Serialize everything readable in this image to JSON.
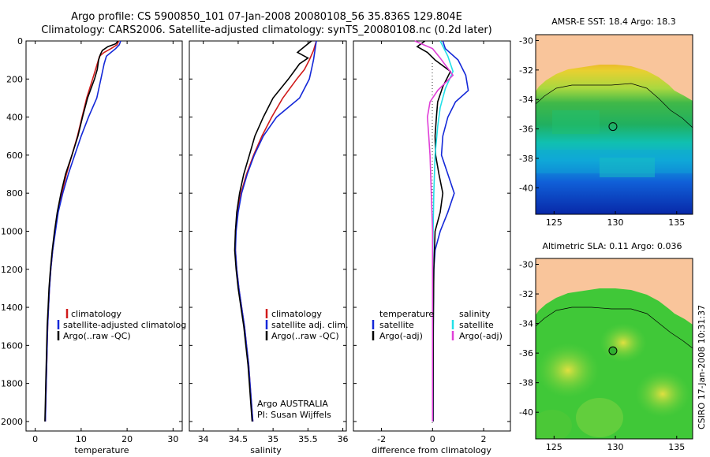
{
  "header": {
    "line1": "Argo profile: CS 5900850_101 07-Jan-2008 20080108_56 35.836S 129.804E",
    "line2": "Climatology: CARS2006. Satellite-adjusted climatology: synTS_20080108.nc (0.2d later)"
  },
  "footer_stamp": "CSIRO 17-Jan-2008 10:31:37",
  "colors": {
    "climatology": "#d01a1a",
    "satellite": "#1428d8",
    "argo": "#000000",
    "cyan": "#22e0e8",
    "magenta": "#e040d8",
    "land": "#f9c59b"
  },
  "chart_data": [
    {
      "type": "line",
      "id": "temperature",
      "xlabel": "temperature",
      "ylabel": "",
      "xlim": [
        -2,
        32
      ],
      "ylim": [
        2050,
        0
      ],
      "xticks": [
        0,
        10,
        20,
        30
      ],
      "yticks": [
        0,
        200,
        400,
        600,
        800,
        1000,
        1200,
        1400,
        1600,
        1800,
        2000
      ],
      "legend": [
        "climatology",
        "satellite-adjusted climatolog",
        "Argo(..raw -QC)"
      ],
      "series": [
        {
          "name": "climatology",
          "color": "#d01a1a",
          "points": [
            [
              18.2,
              0
            ],
            [
              17.8,
              20
            ],
            [
              16.5,
              40
            ],
            [
              15.0,
              60
            ],
            [
              14.0,
              80
            ],
            [
              13.5,
              120
            ],
            [
              12.5,
              200
            ],
            [
              11.2,
              300
            ],
            [
              10.2,
              400
            ],
            [
              9.2,
              500
            ],
            [
              8.0,
              600
            ],
            [
              6.8,
              700
            ],
            [
              5.8,
              800
            ],
            [
              4.9,
              900
            ],
            [
              4.3,
              1000
            ],
            [
              3.8,
              1100
            ],
            [
              3.4,
              1200
            ],
            [
              3.1,
              1300
            ],
            [
              2.9,
              1400
            ],
            [
              2.7,
              1500
            ],
            [
              2.6,
              1600
            ],
            [
              2.5,
              1700
            ],
            [
              2.4,
              1800
            ],
            [
              2.3,
              1900
            ],
            [
              2.2,
              2000
            ]
          ]
        },
        {
          "name": "satellite-adjusted climatology",
          "color": "#1428d8",
          "points": [
            [
              18.6,
              0
            ],
            [
              18.3,
              20
            ],
            [
              17.5,
              40
            ],
            [
              16.5,
              60
            ],
            [
              15.5,
              80
            ],
            [
              15.0,
              120
            ],
            [
              14.3,
              200
            ],
            [
              13.4,
              300
            ],
            [
              11.6,
              400
            ],
            [
              10.0,
              500
            ],
            [
              8.6,
              600
            ],
            [
              7.2,
              700
            ],
            [
              6.0,
              800
            ],
            [
              5.0,
              900
            ],
            [
              4.4,
              1000
            ],
            [
              3.8,
              1100
            ],
            [
              3.4,
              1200
            ],
            [
              3.1,
              1300
            ],
            [
              2.9,
              1400
            ],
            [
              2.7,
              1500
            ],
            [
              2.6,
              1600
            ],
            [
              2.5,
              1700
            ],
            [
              2.4,
              1800
            ],
            [
              2.3,
              1900
            ],
            [
              2.2,
              2000
            ]
          ]
        },
        {
          "name": "Argo(..raw -QC)",
          "color": "#000000",
          "points": [
            [
              18.0,
              0
            ],
            [
              17.5,
              15
            ],
            [
              15.8,
              30
            ],
            [
              14.6,
              50
            ],
            [
              14.2,
              70
            ],
            [
              13.8,
              100
            ],
            [
              13.5,
              150
            ],
            [
              12.9,
              200
            ],
            [
              11.4,
              300
            ],
            [
              10.3,
              400
            ],
            [
              9.3,
              500
            ],
            [
              8.0,
              600
            ],
            [
              6.6,
              700
            ],
            [
              5.6,
              800
            ],
            [
              4.8,
              900
            ],
            [
              4.2,
              1000
            ],
            [
              3.7,
              1100
            ],
            [
              3.3,
              1200
            ],
            [
              3.0,
              1300
            ],
            [
              2.8,
              1400
            ],
            [
              2.6,
              1500
            ],
            [
              2.5,
              1600
            ],
            [
              2.4,
              1700
            ],
            [
              2.3,
              1800
            ],
            [
              2.2,
              1900
            ],
            [
              2.1,
              2000
            ]
          ]
        }
      ]
    },
    {
      "type": "line",
      "id": "salinity",
      "xlabel": "salinity",
      "ylabel": "",
      "xlim": [
        33.8,
        36.05
      ],
      "ylim": [
        2050,
        0
      ],
      "xticks": [
        34,
        34.5,
        35,
        35.5,
        36
      ],
      "legend": [
        "climatology",
        "satellite adj. clim.",
        "Argo(..raw -QC)"
      ],
      "annotation": [
        "Argo AUSTRALIA",
        "PI: Susan Wijffels"
      ],
      "series": [
        {
          "name": "climatology",
          "color": "#d01a1a",
          "points": [
            [
              35.62,
              0
            ],
            [
              35.58,
              50
            ],
            [
              35.52,
              100
            ],
            [
              35.45,
              150
            ],
            [
              35.34,
              200
            ],
            [
              35.14,
              300
            ],
            [
              34.98,
              400
            ],
            [
              34.84,
              500
            ],
            [
              34.72,
              600
            ],
            [
              34.62,
              700
            ],
            [
              34.54,
              800
            ],
            [
              34.49,
              900
            ],
            [
              34.46,
              1000
            ],
            [
              34.46,
              1100
            ],
            [
              34.48,
              1200
            ],
            [
              34.51,
              1300
            ],
            [
              34.55,
              1400
            ],
            [
              34.59,
              1500
            ],
            [
              34.62,
              1600
            ],
            [
              34.65,
              1700
            ],
            [
              34.67,
              1800
            ],
            [
              34.69,
              1900
            ],
            [
              34.71,
              2000
            ]
          ]
        },
        {
          "name": "satellite adj. clim.",
          "color": "#1428d8",
          "points": [
            [
              35.62,
              0
            ],
            [
              35.6,
              50
            ],
            [
              35.58,
              100
            ],
            [
              35.55,
              150
            ],
            [
              35.52,
              200
            ],
            [
              35.38,
              300
            ],
            [
              35.05,
              400
            ],
            [
              34.86,
              500
            ],
            [
              34.73,
              600
            ],
            [
              34.63,
              700
            ],
            [
              34.55,
              800
            ],
            [
              34.5,
              900
            ],
            [
              34.47,
              1000
            ],
            [
              34.46,
              1100
            ],
            [
              34.48,
              1200
            ],
            [
              34.51,
              1300
            ],
            [
              34.55,
              1400
            ],
            [
              34.59,
              1500
            ],
            [
              34.62,
              1600
            ],
            [
              34.65,
              1700
            ],
            [
              34.67,
              1800
            ],
            [
              34.69,
              1900
            ],
            [
              34.71,
              2000
            ]
          ]
        },
        {
          "name": "Argo(..raw -QC)",
          "color": "#000000",
          "points": [
            [
              35.55,
              0
            ],
            [
              35.45,
              30
            ],
            [
              35.35,
              60
            ],
            [
              35.5,
              90
            ],
            [
              35.38,
              120
            ],
            [
              35.3,
              160
            ],
            [
              35.22,
              200
            ],
            [
              35.0,
              300
            ],
            [
              34.86,
              400
            ],
            [
              34.74,
              500
            ],
            [
              34.66,
              600
            ],
            [
              34.58,
              700
            ],
            [
              34.52,
              800
            ],
            [
              34.48,
              900
            ],
            [
              34.46,
              1000
            ],
            [
              34.45,
              1100
            ],
            [
              34.47,
              1200
            ],
            [
              34.5,
              1300
            ],
            [
              34.54,
              1400
            ],
            [
              34.58,
              1500
            ],
            [
              34.61,
              1600
            ],
            [
              34.64,
              1700
            ],
            [
              34.66,
              1800
            ],
            [
              34.68,
              1900
            ],
            [
              34.7,
              2000
            ]
          ]
        }
      ]
    },
    {
      "type": "line",
      "id": "difference",
      "xlabel": "difference from climatology",
      "ylabel": "",
      "xlim": [
        -3.1,
        3.05
      ],
      "ylim": [
        2050,
        0
      ],
      "xticks": [
        -2,
        0,
        2
      ],
      "legend_left": [
        "temperature",
        "satellite",
        "Argo(-adj)"
      ],
      "legend_right": [
        "salinity",
        "satellite",
        "Argo(-adj)"
      ],
      "series": [
        {
          "name": "temperature satellite",
          "color": "#1428d8",
          "points": [
            [
              0.4,
              0
            ],
            [
              0.5,
              40
            ],
            [
              1.0,
              100
            ],
            [
              1.3,
              180
            ],
            [
              1.4,
              260
            ],
            [
              0.9,
              320
            ],
            [
              0.6,
              400
            ],
            [
              0.4,
              500
            ],
            [
              0.35,
              600
            ],
            [
              0.6,
              700
            ],
            [
              0.85,
              800
            ],
            [
              0.6,
              900
            ],
            [
              0.3,
              1000
            ],
            [
              0.1,
              1100
            ],
            [
              0.05,
              1200
            ],
            [
              0.03,
              1400
            ],
            [
              0.02,
              2000
            ]
          ]
        },
        {
          "name": "temperature Argo(-adj)",
          "color": "#000000",
          "points": [
            [
              -0.3,
              0
            ],
            [
              -0.6,
              30
            ],
            [
              -0.2,
              60
            ],
            [
              0.1,
              100
            ],
            [
              0.7,
              160
            ],
            [
              0.4,
              240
            ],
            [
              0.2,
              320
            ],
            [
              0.15,
              400
            ],
            [
              0.1,
              500
            ],
            [
              0.12,
              600
            ],
            [
              0.25,
              700
            ],
            [
              0.4,
              800
            ],
            [
              0.3,
              900
            ],
            [
              0.1,
              1000
            ],
            [
              0.05,
              1200
            ],
            [
              0.03,
              1500
            ],
            [
              0.02,
              2000
            ]
          ]
        },
        {
          "name": "salinity satellite",
          "color": "#22e0e8",
          "points": [
            [
              0.3,
              0
            ],
            [
              0.6,
              80
            ],
            [
              0.8,
              160
            ],
            [
              0.5,
              250
            ],
            [
              0.3,
              350
            ],
            [
              0.2,
              450
            ],
            [
              0.1,
              600
            ],
            [
              0.05,
              800
            ],
            [
              0.02,
              1000
            ],
            [
              0.0,
              1200
            ],
            [
              0.0,
              2000
            ]
          ]
        },
        {
          "name": "salinity Argo(-adj)",
          "color": "#e040d8",
          "points": [
            [
              -0.7,
              0
            ],
            [
              0.0,
              40
            ],
            [
              0.3,
              90
            ],
            [
              0.8,
              180
            ],
            [
              0.2,
              260
            ],
            [
              -0.1,
              320
            ],
            [
              -0.2,
              400
            ],
            [
              -0.15,
              500
            ],
            [
              -0.1,
              600
            ],
            [
              -0.05,
              800
            ],
            [
              0.0,
              1000
            ],
            [
              0.0,
              1200
            ],
            [
              0.0,
              2000
            ]
          ]
        }
      ]
    }
  ],
  "maps": [
    {
      "id": "sst",
      "title": "AMSR-E SST: 18.4  Argo: 18.3",
      "xticks": [
        125,
        130,
        135
      ],
      "yticks": [
        -30,
        -32,
        -34,
        -36,
        -38,
        -40
      ],
      "xlim": [
        123.5,
        136.3
      ],
      "ylim": [
        -41.8,
        -29.6
      ],
      "marker": [
        129.8,
        -35.84
      ]
    },
    {
      "id": "sla",
      "title": "Altimetric SLA: 0.11  Argo: 0.036",
      "xticks": [
        125,
        130,
        135
      ],
      "yticks": [
        -30,
        -32,
        -34,
        -36,
        -38,
        -40
      ],
      "xlim": [
        123.5,
        136.3
      ],
      "ylim": [
        -41.8,
        -29.6
      ],
      "marker": [
        129.8,
        -35.84
      ]
    }
  ]
}
